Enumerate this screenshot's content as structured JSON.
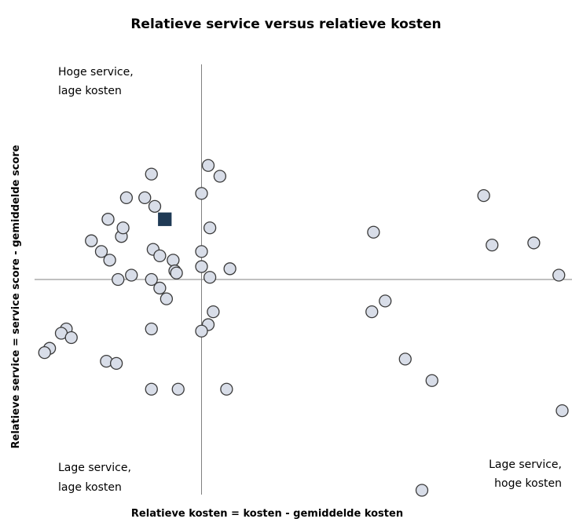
{
  "chart_data": {
    "type": "scatter",
    "title": "Relatieve service versus relatieve kosten",
    "xlabel": "Relatieve kosten = kosten - gemiddelde kosten",
    "ylabel": "Relatieve service = service score - gemiddelde score",
    "xlim": [
      -100,
      220
    ],
    "ylim": [
      -100,
      100
    ],
    "grid": false,
    "legend": "none",
    "quadrant_labels": {
      "top_left": [
        "Hoge service,",
        "lage kosten"
      ],
      "bottom_left": [
        "Lage service,",
        "lage kosten"
      ],
      "bottom_right": [
        "Lage service,",
        "hoge kosten"
      ]
    },
    "series": [
      {
        "marker": "circle",
        "color": "#d8dde8",
        "edge_color": "#3a3a3a",
        "points": [
          [
            4,
            53
          ],
          [
            11,
            48
          ],
          [
            -30,
            49
          ],
          [
            -45,
            38
          ],
          [
            -34,
            38
          ],
          [
            -28,
            34
          ],
          [
            0,
            40
          ],
          [
            -56,
            28
          ],
          [
            -56,
            28
          ],
          [
            5,
            24
          ],
          [
            -48,
            20
          ],
          [
            -47,
            24
          ],
          [
            -66,
            18
          ],
          [
            -60,
            13
          ],
          [
            -29,
            14
          ],
          [
            -17,
            9
          ],
          [
            0,
            13
          ],
          [
            -16,
            4
          ],
          [
            -55,
            9
          ],
          [
            -25,
            11
          ],
          [
            -42,
            2
          ],
          [
            -15,
            3
          ],
          [
            -50,
            0
          ],
          [
            -30,
            0
          ],
          [
            0,
            6
          ],
          [
            5,
            1
          ],
          [
            -25,
            -4
          ],
          [
            17,
            5
          ],
          [
            -21,
            -9
          ],
          [
            7,
            -15
          ],
          [
            -81,
            -23
          ],
          [
            -84,
            -25
          ],
          [
            -78,
            -27
          ],
          [
            -30,
            -23
          ],
          [
            4,
            -21
          ],
          [
            0,
            -24
          ],
          [
            -91,
            -32
          ],
          [
            -94,
            -34
          ],
          [
            -57,
            -38
          ],
          [
            -51,
            -39
          ],
          [
            103,
            22
          ],
          [
            169,
            39
          ],
          [
            174,
            16
          ],
          [
            199,
            17
          ],
          [
            214,
            2
          ],
          [
            110,
            -10
          ],
          [
            102,
            -15
          ],
          [
            122,
            -37
          ],
          [
            138,
            -47
          ],
          [
            -30,
            -51
          ],
          [
            -14,
            -51
          ],
          [
            15,
            -51
          ],
          [
            216,
            -61
          ],
          [
            132,
            -98
          ]
        ]
      },
      {
        "marker": "square",
        "color": "#1f3a55",
        "edge_color": "#1f3a55",
        "points": [
          [
            -22,
            28
          ]
        ]
      }
    ]
  }
}
